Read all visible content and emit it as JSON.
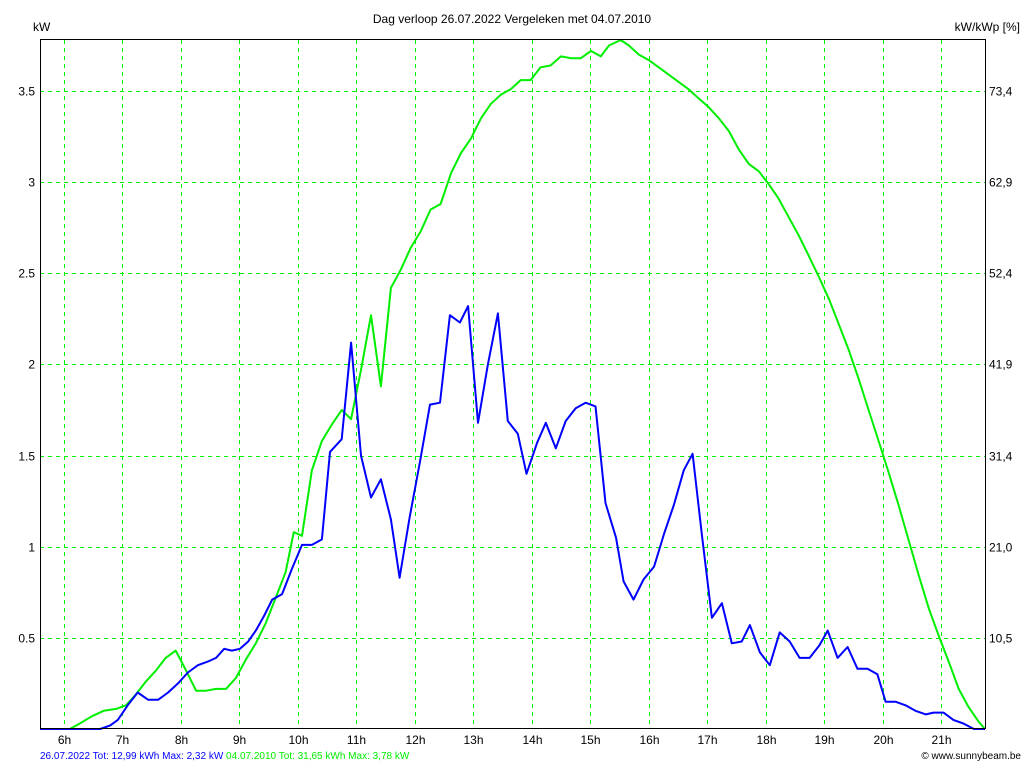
{
  "chart_data": {
    "type": "line",
    "title": "Dag  verloop 26.07.2022   Vergeleken met 04.07.2010",
    "ylabel": "kW",
    "ylabel_right": "kW/kWp [%]",
    "xlabel": "",
    "xlim": [
      5.59,
      21.75
    ],
    "ylim": [
      0,
      3.78
    ],
    "grid": true,
    "x_ticks": [
      6,
      7,
      8,
      9,
      10,
      11,
      12,
      13,
      14,
      15,
      16,
      17,
      18,
      19,
      20,
      21
    ],
    "x_tick_labels": [
      "6h",
      "7h",
      "8h",
      "9h",
      "10h",
      "11h",
      "12h",
      "13h",
      "14h",
      "15h",
      "16h",
      "17h",
      "18h",
      "19h",
      "20h",
      "21h"
    ],
    "y_ticks": [
      0.5,
      1,
      1.5,
      2,
      2.5,
      3,
      3.5
    ],
    "y_tick_labels": [
      "0.5",
      "1",
      "1.5",
      "2",
      "2.5",
      "3",
      "3.5"
    ],
    "y_right_tick_labels": [
      "10,5",
      "21,0",
      "31,4",
      "41,9",
      "52,4",
      "62,9",
      "73,4"
    ],
    "series": [
      {
        "name": "26.07.2022",
        "color": "#0000ff",
        "points": [
          [
            5.59,
            0
          ],
          [
            6.62,
            0
          ],
          [
            6.79,
            0.02
          ],
          [
            6.92,
            0.05
          ],
          [
            7.09,
            0.13
          ],
          [
            7.26,
            0.2
          ],
          [
            7.44,
            0.16
          ],
          [
            7.61,
            0.16
          ],
          [
            7.78,
            0.2
          ],
          [
            7.95,
            0.25
          ],
          [
            8.12,
            0.31
          ],
          [
            8.29,
            0.35
          ],
          [
            8.46,
            0.37
          ],
          [
            8.6,
            0.39
          ],
          [
            8.74,
            0.44
          ],
          [
            8.87,
            0.43
          ],
          [
            9.01,
            0.44
          ],
          [
            9.15,
            0.48
          ],
          [
            9.28,
            0.54
          ],
          [
            9.42,
            0.62
          ],
          [
            9.56,
            0.71
          ],
          [
            9.73,
            0.74
          ],
          [
            9.9,
            0.88
          ],
          [
            10.07,
            1.01
          ],
          [
            10.24,
            1.01
          ],
          [
            10.41,
            1.04
          ],
          [
            10.55,
            1.52
          ],
          [
            10.75,
            1.59
          ],
          [
            10.91,
            2.12
          ],
          [
            11.08,
            1.5
          ],
          [
            11.25,
            1.27
          ],
          [
            11.42,
            1.37
          ],
          [
            11.59,
            1.15
          ],
          [
            11.74,
            0.83
          ],
          [
            11.91,
            1.16
          ],
          [
            12.09,
            1.47
          ],
          [
            12.26,
            1.78
          ],
          [
            12.43,
            1.79
          ],
          [
            12.6,
            2.27
          ],
          [
            12.77,
            2.23
          ],
          [
            12.91,
            2.32
          ],
          [
            13.08,
            1.68
          ],
          [
            13.25,
            2.0
          ],
          [
            13.42,
            2.28
          ],
          [
            13.59,
            1.69
          ],
          [
            13.76,
            1.62
          ],
          [
            13.91,
            1.4
          ],
          [
            14.09,
            1.57
          ],
          [
            14.24,
            1.68
          ],
          [
            14.41,
            1.54
          ],
          [
            14.58,
            1.69
          ],
          [
            14.75,
            1.76
          ],
          [
            14.92,
            1.79
          ],
          [
            15.09,
            1.77
          ],
          [
            15.26,
            1.24
          ],
          [
            15.44,
            1.05
          ],
          [
            15.57,
            0.81
          ],
          [
            15.74,
            0.71
          ],
          [
            15.91,
            0.82
          ],
          [
            16.09,
            0.89
          ],
          [
            16.26,
            1.07
          ],
          [
            16.43,
            1.23
          ],
          [
            16.6,
            1.42
          ],
          [
            16.75,
            1.51
          ],
          [
            16.91,
            1.06
          ],
          [
            17.08,
            0.61
          ],
          [
            17.25,
            0.69
          ],
          [
            17.42,
            0.47
          ],
          [
            17.59,
            0.48
          ],
          [
            17.73,
            0.57
          ],
          [
            17.9,
            0.42
          ],
          [
            18.07,
            0.35
          ],
          [
            18.24,
            0.53
          ],
          [
            18.41,
            0.48
          ],
          [
            18.58,
            0.39
          ],
          [
            18.75,
            0.39
          ],
          [
            18.92,
            0.46
          ],
          [
            19.06,
            0.54
          ],
          [
            19.23,
            0.39
          ],
          [
            19.4,
            0.45
          ],
          [
            19.57,
            0.33
          ],
          [
            19.74,
            0.33
          ],
          [
            19.91,
            0.3
          ],
          [
            20.05,
            0.15
          ],
          [
            20.22,
            0.15
          ],
          [
            20.39,
            0.13
          ],
          [
            20.56,
            0.1
          ],
          [
            20.74,
            0.08
          ],
          [
            20.87,
            0.09
          ],
          [
            21.04,
            0.09
          ],
          [
            21.21,
            0.05
          ],
          [
            21.38,
            0.03
          ],
          [
            21.56,
            0
          ],
          [
            21.75,
            0
          ]
        ]
      },
      {
        "name": "04.07.2010",
        "color": "#00ee00",
        "points": [
          [
            5.59,
            0
          ],
          [
            6.1,
            0
          ],
          [
            6.27,
            0.03
          ],
          [
            6.48,
            0.07
          ],
          [
            6.68,
            0.1
          ],
          [
            6.89,
            0.11
          ],
          [
            7.06,
            0.13
          ],
          [
            7.23,
            0.19
          ],
          [
            7.4,
            0.26
          ],
          [
            7.57,
            0.32
          ],
          [
            7.74,
            0.39
          ],
          [
            7.91,
            0.43
          ],
          [
            8.09,
            0.32
          ],
          [
            8.26,
            0.21
          ],
          [
            8.43,
            0.21
          ],
          [
            8.6,
            0.22
          ],
          [
            8.77,
            0.22
          ],
          [
            8.94,
            0.28
          ],
          [
            9.11,
            0.38
          ],
          [
            9.28,
            0.47
          ],
          [
            9.45,
            0.58
          ],
          [
            9.62,
            0.72
          ],
          [
            9.79,
            0.86
          ],
          [
            9.93,
            1.08
          ],
          [
            10.07,
            1.06
          ],
          [
            10.24,
            1.42
          ],
          [
            10.41,
            1.58
          ],
          [
            10.58,
            1.67
          ],
          [
            10.75,
            1.75
          ],
          [
            10.91,
            1.7
          ],
          [
            11.08,
            1.97
          ],
          [
            11.25,
            2.27
          ],
          [
            11.42,
            1.88
          ],
          [
            11.59,
            2.42
          ],
          [
            11.76,
            2.52
          ],
          [
            11.93,
            2.64
          ],
          [
            12.1,
            2.73
          ],
          [
            12.27,
            2.85
          ],
          [
            12.44,
            2.88
          ],
          [
            12.62,
            3.05
          ],
          [
            12.79,
            3.16
          ],
          [
            12.96,
            3.24
          ],
          [
            13.13,
            3.35
          ],
          [
            13.3,
            3.43
          ],
          [
            13.47,
            3.48
          ],
          [
            13.64,
            3.51
          ],
          [
            13.81,
            3.56
          ],
          [
            13.98,
            3.56
          ],
          [
            14.15,
            3.63
          ],
          [
            14.32,
            3.64
          ],
          [
            14.5,
            3.69
          ],
          [
            14.67,
            3.68
          ],
          [
            14.84,
            3.68
          ],
          [
            15.01,
            3.72
          ],
          [
            15.18,
            3.69
          ],
          [
            15.32,
            3.75
          ],
          [
            15.52,
            3.78
          ],
          [
            15.66,
            3.75
          ],
          [
            15.83,
            3.7
          ],
          [
            16.0,
            3.67
          ],
          [
            16.17,
            3.63
          ],
          [
            16.34,
            3.59
          ],
          [
            16.51,
            3.55
          ],
          [
            16.68,
            3.51
          ],
          [
            16.85,
            3.46
          ],
          [
            17.03,
            3.41
          ],
          [
            17.2,
            3.35
          ],
          [
            17.37,
            3.28
          ],
          [
            17.54,
            3.18
          ],
          [
            17.71,
            3.1
          ],
          [
            17.88,
            3.06
          ],
          [
            18.05,
            2.99
          ],
          [
            18.22,
            2.91
          ],
          [
            18.39,
            2.81
          ],
          [
            18.56,
            2.71
          ],
          [
            18.73,
            2.6
          ],
          [
            18.91,
            2.48
          ],
          [
            19.08,
            2.36
          ],
          [
            19.25,
            2.22
          ],
          [
            19.42,
            2.08
          ],
          [
            19.59,
            1.92
          ],
          [
            19.76,
            1.75
          ],
          [
            19.93,
            1.58
          ],
          [
            20.1,
            1.41
          ],
          [
            20.27,
            1.23
          ],
          [
            20.44,
            1.04
          ],
          [
            20.62,
            0.84
          ],
          [
            20.79,
            0.66
          ],
          [
            20.96,
            0.51
          ],
          [
            21.13,
            0.37
          ],
          [
            21.3,
            0.22
          ],
          [
            21.47,
            0.12
          ],
          [
            21.64,
            0.04
          ],
          [
            21.75,
            0
          ]
        ]
      }
    ],
    "legend": {
      "placement": "bottom-left",
      "today": "26.07.2022 Tot: 12,99 kWh Max: 2,32 kW",
      "reference": "04.07.2010 Tot: 31,65 kWh Max: 3,78 kW"
    },
    "grid_color": "#00ee00"
  },
  "footer": {
    "copyright": "© www.sunnybeam.be"
  }
}
